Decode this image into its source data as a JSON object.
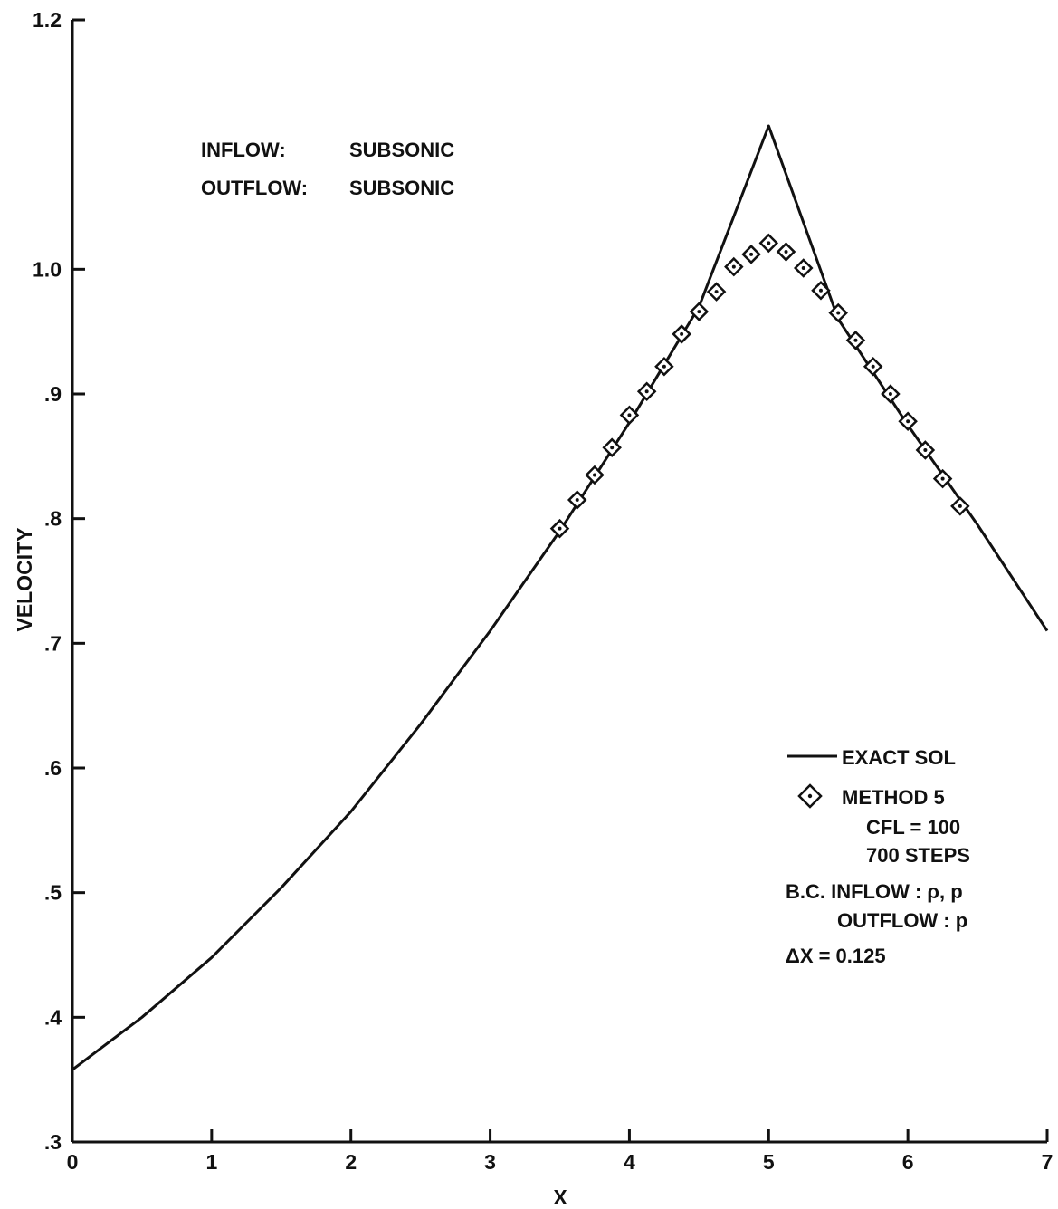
{
  "chart_data": {
    "type": "line",
    "title": "",
    "xlabel": "X",
    "ylabel": "VELOCITY",
    "xlim": [
      0,
      7
    ],
    "ylim": [
      0.3,
      1.2
    ],
    "grid": false,
    "x_ticks": [
      0,
      1,
      2,
      3,
      4,
      5,
      6,
      7
    ],
    "x_tick_labels": [
      "0",
      "1",
      "2",
      "3",
      "4",
      "5",
      "6",
      "7"
    ],
    "y_ticks": [
      0.3,
      0.4,
      0.5,
      0.6,
      0.7,
      0.8,
      0.9,
      1.0,
      1.2
    ],
    "y_tick_labels": [
      ".3",
      ".4",
      ".5",
      ".6",
      ".7",
      ".8",
      ".9",
      "1.0",
      "1.2"
    ],
    "annotation": {
      "inflow_label": "INFLOW:",
      "inflow_value": "SUBSONIC",
      "outflow_label": "OUTFLOW:",
      "outflow_value": "SUBSONIC"
    },
    "legend": {
      "placement": "right",
      "exact_label": "EXACT SOL",
      "method_label": "METHOD 5",
      "cfl": "CFL = 100",
      "steps": "700 STEPS",
      "bc_inflow": "B.C. INFLOW : ρ, p",
      "bc_outflow": "OUTFLOW : p",
      "dx": "ΔX = 0.125"
    },
    "series": [
      {
        "style": "solid-line",
        "x": [
          0,
          0.5,
          1,
          1.5,
          2,
          2.5,
          3,
          3.5,
          4,
          4.5,
          5,
          5.5,
          6,
          6.5,
          7
        ],
        "y": [
          0.358,
          0.4,
          0.448,
          0.504,
          0.565,
          0.635,
          0.71,
          0.79,
          0.877,
          0.97,
          1.115,
          0.96,
          0.875,
          0.795,
          0.71
        ]
      },
      {
        "style": "diamond-markers",
        "x": [
          3.5,
          3.625,
          3.75,
          3.875,
          4.0,
          4.125,
          4.25,
          4.375,
          4.5,
          4.625,
          4.75,
          4.875,
          5.0,
          5.125,
          5.25,
          5.375,
          5.5,
          5.625,
          5.75,
          5.875,
          6.0,
          6.125,
          6.25,
          6.375
        ],
        "y": [
          0.792,
          0.815,
          0.835,
          0.857,
          0.883,
          0.902,
          0.922,
          0.948,
          0.966,
          0.982,
          1.002,
          1.012,
          1.021,
          1.014,
          1.001,
          0.983,
          0.965,
          0.943,
          0.922,
          0.9,
          0.878,
          0.855,
          0.832,
          0.81
        ]
      }
    ]
  }
}
